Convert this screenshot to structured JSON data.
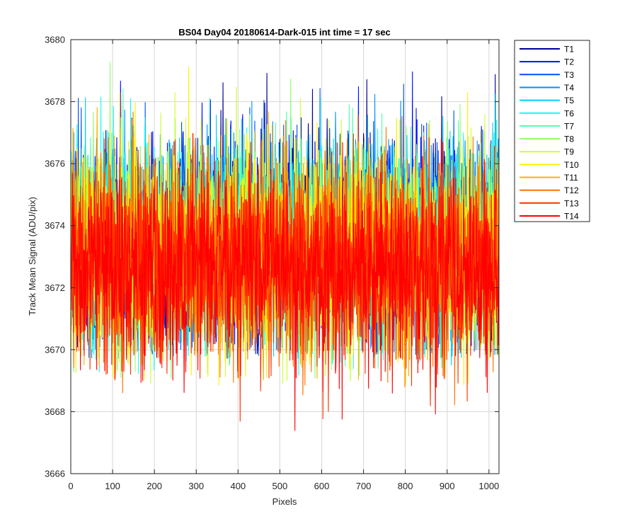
{
  "chart_data": {
    "type": "line",
    "title": "BS04 Day04 20180614-Dark-015 int time = 17 sec",
    "xlabel": "Pixels",
    "ylabel": "Track Mean Signal (ADU/pix)",
    "xlim": [
      0,
      1024
    ],
    "ylim": [
      3666,
      3680
    ],
    "xticks": [
      0,
      100,
      200,
      300,
      400,
      500,
      600,
      700,
      800,
      900,
      1000
    ],
    "yticks": [
      3666,
      3668,
      3670,
      3672,
      3674,
      3676,
      3678,
      3680
    ],
    "grid": true,
    "legend_position": "outside-top-right",
    "x_range": [
      1,
      1024
    ],
    "series": [
      {
        "name": "T1",
        "color": "#00008f",
        "mean": 3673.6,
        "std": 1.6,
        "min": 3669.8,
        "max": 3679.0
      },
      {
        "name": "T2",
        "color": "#0010ff",
        "mean": 3673.6,
        "std": 1.6,
        "min": 3669.8,
        "max": 3679.0
      },
      {
        "name": "T3",
        "color": "#0050ff",
        "mean": 3673.5,
        "std": 1.6,
        "min": 3669.8,
        "max": 3678.6
      },
      {
        "name": "T4",
        "color": "#0090ff",
        "mean": 3673.5,
        "std": 1.6,
        "min": 3669.7,
        "max": 3678.4
      },
      {
        "name": "T5",
        "color": "#00d0ff",
        "mean": 3673.5,
        "std": 1.6,
        "min": 3669.5,
        "max": 3678.3
      },
      {
        "name": "T6",
        "color": "#10ffef",
        "mean": 3673.4,
        "std": 1.6,
        "min": 3669.0,
        "max": 3678.4
      },
      {
        "name": "T7",
        "color": "#50ffaf",
        "mean": 3673.4,
        "std": 1.6,
        "min": 3669.2,
        "max": 3679.0
      },
      {
        "name": "T8",
        "color": "#90ff6f",
        "mean": 3673.3,
        "std": 1.6,
        "min": 3669.0,
        "max": 3679.4
      },
      {
        "name": "T9",
        "color": "#d0ff2f",
        "mean": 3673.2,
        "std": 1.6,
        "min": 3668.8,
        "max": 3679.0
      },
      {
        "name": "T10",
        "color": "#ffef00",
        "mean": 3673.1,
        "std": 1.6,
        "min": 3668.8,
        "max": 3679.4
      },
      {
        "name": "T11",
        "color": "#ffaf00",
        "mean": 3673.0,
        "std": 1.6,
        "min": 3668.4,
        "max": 3678.4
      },
      {
        "name": "T12",
        "color": "#ff7000",
        "mean": 3672.9,
        "std": 1.6,
        "min": 3668.1,
        "max": 3677.8
      },
      {
        "name": "T13",
        "color": "#ff3000",
        "mean": 3672.8,
        "std": 1.6,
        "min": 3667.6,
        "max": 3677.2
      },
      {
        "name": "T14",
        "color": "#ff0000",
        "mean": 3672.7,
        "std": 1.6,
        "min": 3667.2,
        "max": 3677.0
      }
    ]
  }
}
